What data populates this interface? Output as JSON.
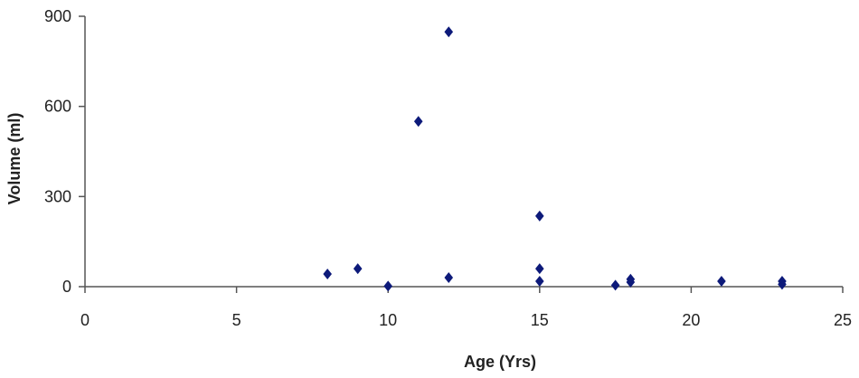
{
  "chart_data": {
    "type": "scatter",
    "title": "",
    "xlabel": "Age (Yrs)",
    "ylabel": "Volume (ml)",
    "xlim": [
      0,
      25
    ],
    "ylim": [
      0,
      900
    ],
    "xticks": [
      "0",
      "5",
      "10",
      "15",
      "20",
      "25"
    ],
    "yticks": [
      "0",
      "300",
      "600",
      "900"
    ],
    "grid": false,
    "legend": "none",
    "marker": "diamond",
    "color": "#0d1a7a",
    "series": [
      {
        "points": [
          {
            "x": 8,
            "y": 42
          },
          {
            "x": 9,
            "y": 60
          },
          {
            "x": 10,
            "y": 2
          },
          {
            "x": 11,
            "y": 550
          },
          {
            "x": 12,
            "y": 848
          },
          {
            "x": 12,
            "y": 30
          },
          {
            "x": 15,
            "y": 235
          },
          {
            "x": 15,
            "y": 60
          },
          {
            "x": 15,
            "y": 18
          },
          {
            "x": 17.5,
            "y": 5
          },
          {
            "x": 18,
            "y": 25
          },
          {
            "x": 18,
            "y": 15
          },
          {
            "x": 21,
            "y": 18
          },
          {
            "x": 23,
            "y": 18
          },
          {
            "x": 23,
            "y": 8
          }
        ]
      }
    ]
  }
}
